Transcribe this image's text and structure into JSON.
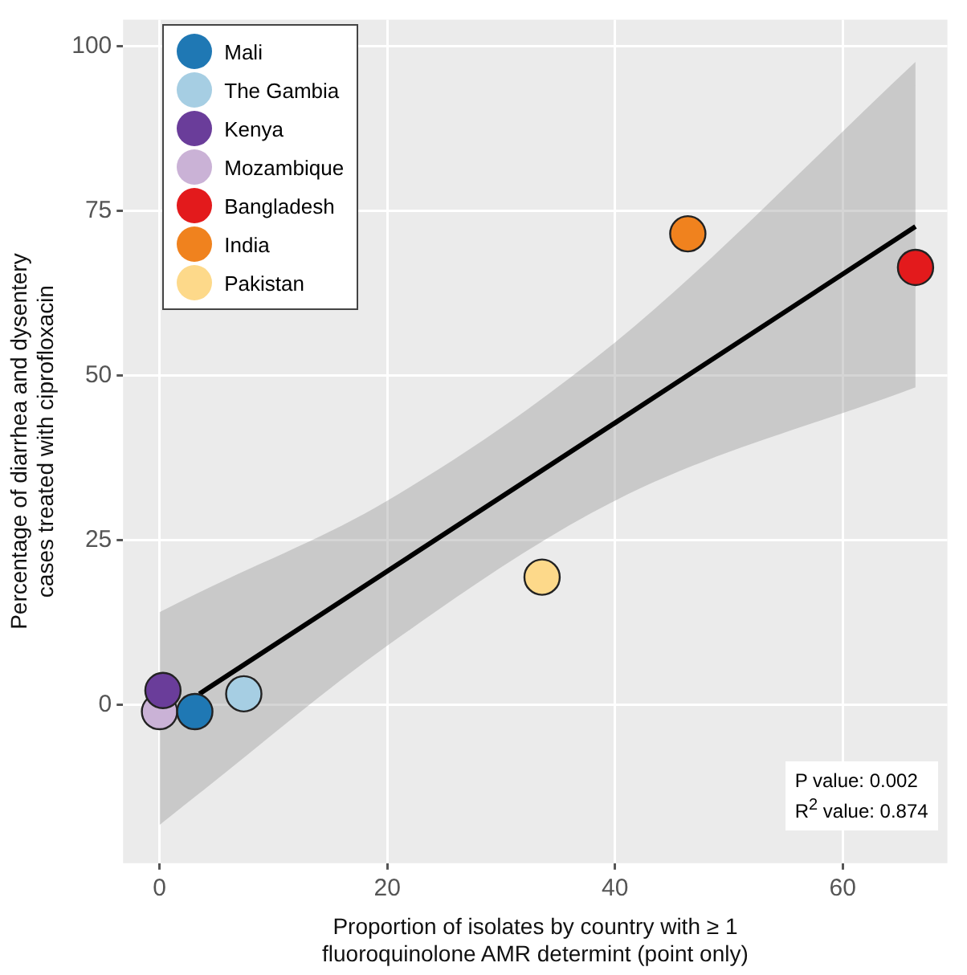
{
  "chart_data": {
    "type": "scatter",
    "xlabel": "Proportion of isolates by country with ≥ 1 fluoroquinolone AMR determint (point only)",
    "ylabel": "Percentage of diarrhea and dysentery cases treated with ciprofloxacin",
    "xlim": [
      -3.2,
      69.2
    ],
    "ylim": [
      -24,
      104
    ],
    "xticks": [
      0,
      20,
      40,
      60
    ],
    "yticks": [
      0,
      25,
      50,
      75,
      100
    ],
    "grid": true,
    "legend": "top left",
    "marker": "circle",
    "series": [
      {
        "type": "line",
        "marker": "none",
        "color": "#000000",
        "x": [
          0,
          3.5,
          20,
          40,
          66.4
        ],
        "values": [
          null,
          1.7,
          20.3,
          42.8,
          72.6
        ],
        "lower": [
          -18.2,
          -13.4,
          9,
          31,
          48.2
        ],
        "upper": [
          14.1,
          17.1,
          31,
          55,
          97.6
        ]
      },
      {
        "name": "Mali",
        "color": "#1f78b4",
        "x": [
          3.1
        ],
        "values": [
          -1
        ]
      },
      {
        "name": "The Gambia",
        "color": "#a6cee3",
        "x": [
          7.4
        ],
        "values": [
          1.7
        ]
      },
      {
        "name": "Kenya",
        "color": "#6a3d9a",
        "x": [
          0.3
        ],
        "values": [
          2.2
        ]
      },
      {
        "name": "Mozambique",
        "color": "#cab2d6",
        "x": [
          0
        ],
        "values": [
          -1
        ]
      },
      {
        "name": "Bangladesh",
        "color": "#e31a1c",
        "x": [
          66.4
        ],
        "values": [
          66.4
        ]
      },
      {
        "name": "India",
        "color": "#f0821e",
        "x": [
          46.4
        ],
        "values": [
          71.5
        ]
      },
      {
        "name": "Pakistan",
        "color": "#fdd98a",
        "x": [
          33.6
        ],
        "values": [
          19.4
        ]
      }
    ],
    "annotations": [
      "P value: 0.002",
      "R$^{2}$ value: 0.874"
    ]
  }
}
